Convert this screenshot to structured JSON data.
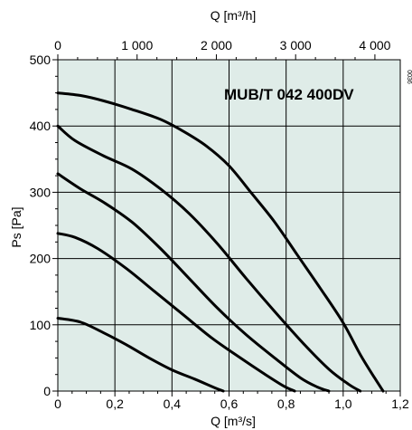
{
  "chart_data": {
    "type": "line",
    "title": "MUB/T 042 400DV",
    "side_mark": "0036",
    "xlabel": "Q [m³/s]",
    "ylabel": "Ps [Pa]",
    "x2label": "Q [m³/h]",
    "xlim": [
      0,
      1.2
    ],
    "ylim": [
      0,
      500
    ],
    "x2lim": [
      0,
      4320
    ],
    "x_ticks": [
      0,
      0.2,
      0.4,
      0.6,
      0.8,
      1.0,
      1.2
    ],
    "x_tick_labels": [
      "0",
      "0,2",
      "0,4",
      "0,6",
      "0,8",
      "1,0",
      "1,2"
    ],
    "y_ticks": [
      0,
      100,
      200,
      300,
      400,
      500
    ],
    "y_tick_labels": [
      "0",
      "100",
      "200",
      "300",
      "400",
      "500"
    ],
    "x2_ticks": [
      0,
      1000,
      2000,
      3000,
      4000
    ],
    "x2_tick_labels": [
      "0",
      "1 000",
      "2 000",
      "3 000",
      "4 000"
    ],
    "grid": true,
    "background": "#dfece8",
    "line_color": "#000000",
    "series": [
      {
        "x": [
          0,
          0.08,
          0.16,
          0.24,
          0.32,
          0.4,
          0.48,
          0.55,
          0.58
        ],
        "y": [
          110,
          104,
          88,
          70,
          50,
          32,
          18,
          5,
          0
        ]
      },
      {
        "x": [
          0,
          0.06,
          0.14,
          0.24,
          0.34,
          0.44,
          0.54,
          0.64,
          0.72,
          0.79,
          0.83
        ],
        "y": [
          238,
          232,
          215,
          185,
          150,
          115,
          80,
          50,
          27,
          8,
          0
        ]
      },
      {
        "x": [
          0,
          0.08,
          0.16,
          0.26,
          0.36,
          0.46,
          0.56,
          0.66,
          0.76,
          0.85,
          0.91,
          0.95
        ],
        "y": [
          328,
          305,
          285,
          255,
          215,
          170,
          125,
          85,
          50,
          20,
          6,
          0
        ]
      },
      {
        "x": [
          0,
          0.06,
          0.16,
          0.26,
          0.36,
          0.46,
          0.56,
          0.66,
          0.76,
          0.86,
          0.95,
          1.02,
          1.06
        ],
        "y": [
          400,
          378,
          355,
          335,
          305,
          268,
          222,
          170,
          120,
          72,
          33,
          10,
          0
        ]
      },
      {
        "x": [
          0,
          0.08,
          0.16,
          0.26,
          0.36,
          0.44,
          0.52,
          0.6,
          0.68,
          0.76,
          0.84,
          0.92,
          1.0,
          1.06,
          1.11,
          1.14
        ],
        "y": [
          450,
          446,
          438,
          425,
          410,
          392,
          370,
          340,
          298,
          255,
          205,
          155,
          103,
          55,
          20,
          0
        ]
      }
    ]
  }
}
